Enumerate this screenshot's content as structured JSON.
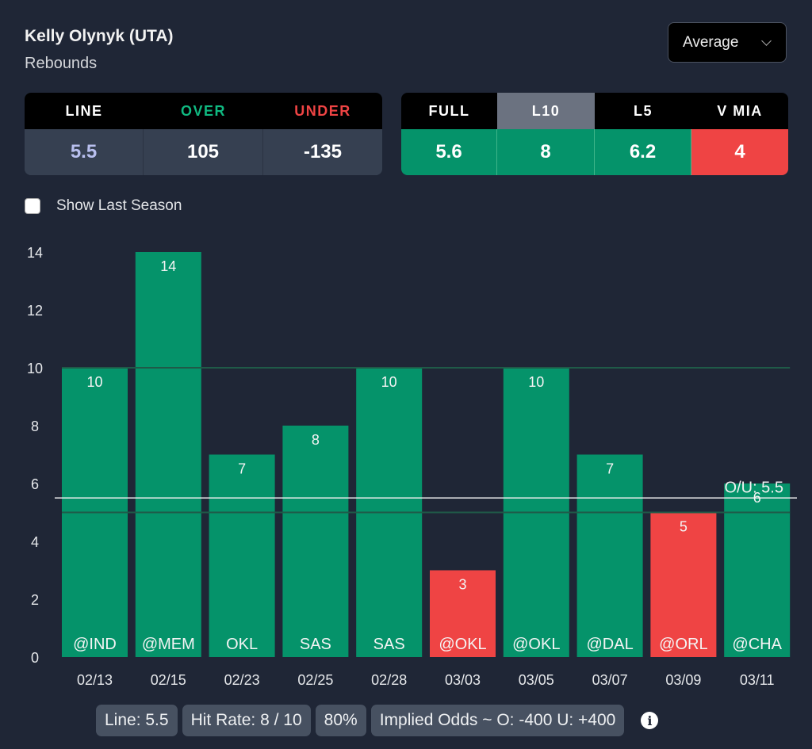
{
  "header": {
    "player": "Kelly Olynyk (UTA)",
    "stat": "Rebounds",
    "dropdown_value": "Average",
    "dropdown_icon": "chevron-down-icon"
  },
  "odds_table": {
    "headers": [
      "LINE",
      "OVER",
      "UNDER"
    ],
    "values": [
      "5.5",
      "105",
      "-135"
    ],
    "header_colors": [
      "#ffffff",
      "#10b981",
      "#ef4444"
    ],
    "value_colors": [
      "#b9c0ef",
      "#ffffff",
      "#ffffff"
    ]
  },
  "averages_table": {
    "headers": [
      "FULL",
      "L10",
      "L5",
      "V MIA"
    ],
    "values": [
      "5.6",
      "8",
      "6.2",
      "4"
    ],
    "selected": "L10",
    "value_colors": [
      "#05936a",
      "#05936a",
      "#05936a",
      "#ef4444"
    ]
  },
  "show_last_season": {
    "label": "Show Last Season",
    "checked": false
  },
  "colors": {
    "over": "#05936a",
    "under": "#ef4444",
    "background": "#1f2636",
    "selected_header": "#6b7280"
  },
  "chart_data": {
    "type": "bar",
    "categories": [
      "02/13",
      "02/15",
      "02/23",
      "02/25",
      "02/28",
      "03/03",
      "03/05",
      "03/07",
      "03/09",
      "03/11"
    ],
    "opponents": [
      "@IND",
      "@MEM",
      "OKL",
      "SAS",
      "SAS",
      "@OKL",
      "@OKL",
      "@DAL",
      "@ORL",
      "@CHA"
    ],
    "values": [
      10,
      14,
      7,
      8,
      10,
      3,
      10,
      7,
      5,
      6
    ],
    "ylim": [
      0,
      14
    ],
    "yticks": [
      0,
      2,
      4,
      6,
      8,
      10,
      12,
      14
    ],
    "gridlines": [
      5,
      10
    ],
    "line": {
      "value": 5.5,
      "label": "O/U: 5.5"
    },
    "title": "",
    "xlabel": "",
    "ylabel": "",
    "legend": "none"
  },
  "footer": {
    "pills": [
      "Line: 5.5",
      "Hit Rate: 8 / 10",
      "80%",
      "Implied Odds ~ O: -400 U: +400"
    ],
    "info_icon": "i"
  }
}
